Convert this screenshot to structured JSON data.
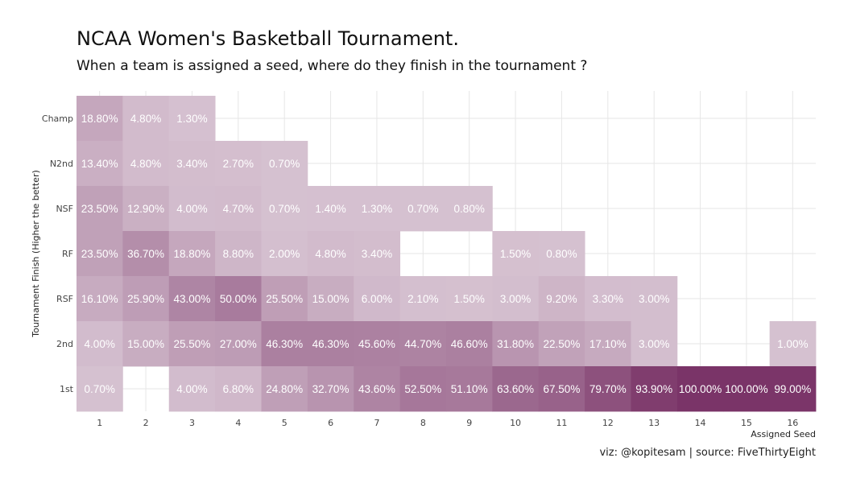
{
  "chart_data": {
    "type": "heatmap",
    "title": "NCAA Women's Basketball Tournament.",
    "subtitle": "When a team is assigned a seed, where do they finish in the tournament ?",
    "xlabel": "Assigned Seed",
    "ylabel": "Tournament Finish (Higher the better)",
    "x_categories": [
      "1",
      "2",
      "3",
      "4",
      "5",
      "6",
      "7",
      "8",
      "9",
      "10",
      "11",
      "12",
      "13",
      "14",
      "15",
      "16"
    ],
    "y_categories": [
      "Champ",
      "N2nd",
      "NSF",
      "RF",
      "RSF",
      "2nd",
      "1st"
    ],
    "cells": [
      {
        "seed": "1",
        "finish": "Champ",
        "value": 18.8,
        "label": "18.80%"
      },
      {
        "seed": "2",
        "finish": "Champ",
        "value": 4.8,
        "label": "4.80%"
      },
      {
        "seed": "3",
        "finish": "Champ",
        "value": 1.3,
        "label": "1.30%"
      },
      {
        "seed": "1",
        "finish": "N2nd",
        "value": 13.4,
        "label": "13.40%"
      },
      {
        "seed": "2",
        "finish": "N2nd",
        "value": 4.8,
        "label": "4.80%"
      },
      {
        "seed": "3",
        "finish": "N2nd",
        "value": 3.4,
        "label": "3.40%"
      },
      {
        "seed": "4",
        "finish": "N2nd",
        "value": 2.7,
        "label": "2.70%"
      },
      {
        "seed": "5",
        "finish": "N2nd",
        "value": 0.7,
        "label": "0.70%"
      },
      {
        "seed": "1",
        "finish": "NSF",
        "value": 23.5,
        "label": "23.50%"
      },
      {
        "seed": "2",
        "finish": "NSF",
        "value": 12.9,
        "label": "12.90%"
      },
      {
        "seed": "3",
        "finish": "NSF",
        "value": 4.0,
        "label": "4.00%"
      },
      {
        "seed": "4",
        "finish": "NSF",
        "value": 4.7,
        "label": "4.70%"
      },
      {
        "seed": "5",
        "finish": "NSF",
        "value": 0.7,
        "label": "0.70%"
      },
      {
        "seed": "6",
        "finish": "NSF",
        "value": 1.4,
        "label": "1.40%"
      },
      {
        "seed": "7",
        "finish": "NSF",
        "value": 1.3,
        "label": "1.30%"
      },
      {
        "seed": "8",
        "finish": "NSF",
        "value": 0.7,
        "label": "0.70%"
      },
      {
        "seed": "9",
        "finish": "NSF",
        "value": 0.8,
        "label": "0.80%"
      },
      {
        "seed": "1",
        "finish": "RF",
        "value": 23.5,
        "label": "23.50%"
      },
      {
        "seed": "2",
        "finish": "RF",
        "value": 36.7,
        "label": "36.70%"
      },
      {
        "seed": "3",
        "finish": "RF",
        "value": 18.8,
        "label": "18.80%"
      },
      {
        "seed": "4",
        "finish": "RF",
        "value": 8.8,
        "label": "8.80%"
      },
      {
        "seed": "5",
        "finish": "RF",
        "value": 2.0,
        "label": "2.00%"
      },
      {
        "seed": "6",
        "finish": "RF",
        "value": 4.8,
        "label": "4.80%"
      },
      {
        "seed": "7",
        "finish": "RF",
        "value": 3.4,
        "label": "3.40%"
      },
      {
        "seed": "10",
        "finish": "RF",
        "value": 1.5,
        "label": "1.50%"
      },
      {
        "seed": "11",
        "finish": "RF",
        "value": 0.8,
        "label": "0.80%"
      },
      {
        "seed": "1",
        "finish": "RSF",
        "value": 16.1,
        "label": "16.10%"
      },
      {
        "seed": "2",
        "finish": "RSF",
        "value": 25.9,
        "label": "25.90%"
      },
      {
        "seed": "3",
        "finish": "RSF",
        "value": 43.0,
        "label": "43.00%"
      },
      {
        "seed": "4",
        "finish": "RSF",
        "value": 50.0,
        "label": "50.00%"
      },
      {
        "seed": "5",
        "finish": "RSF",
        "value": 25.5,
        "label": "25.50%"
      },
      {
        "seed": "6",
        "finish": "RSF",
        "value": 15.0,
        "label": "15.00%"
      },
      {
        "seed": "7",
        "finish": "RSF",
        "value": 6.0,
        "label": "6.00%"
      },
      {
        "seed": "8",
        "finish": "RSF",
        "value": 2.1,
        "label": "2.10%"
      },
      {
        "seed": "9",
        "finish": "RSF",
        "value": 1.5,
        "label": "1.50%"
      },
      {
        "seed": "10",
        "finish": "RSF",
        "value": 3.0,
        "label": "3.00%"
      },
      {
        "seed": "11",
        "finish": "RSF",
        "value": 9.2,
        "label": "9.20%"
      },
      {
        "seed": "12",
        "finish": "RSF",
        "value": 3.3,
        "label": "3.30%"
      },
      {
        "seed": "13",
        "finish": "RSF",
        "value": 3.0,
        "label": "3.00%"
      },
      {
        "seed": "1",
        "finish": "2nd",
        "value": 4.0,
        "label": "4.00%"
      },
      {
        "seed": "2",
        "finish": "2nd",
        "value": 15.0,
        "label": "15.00%"
      },
      {
        "seed": "3",
        "finish": "2nd",
        "value": 25.5,
        "label": "25.50%"
      },
      {
        "seed": "4",
        "finish": "2nd",
        "value": 27.0,
        "label": "27.00%"
      },
      {
        "seed": "5",
        "finish": "2nd",
        "value": 46.3,
        "label": "46.30%"
      },
      {
        "seed": "6",
        "finish": "2nd",
        "value": 46.3,
        "label": "46.30%"
      },
      {
        "seed": "7",
        "finish": "2nd",
        "value": 45.6,
        "label": "45.60%"
      },
      {
        "seed": "8",
        "finish": "2nd",
        "value": 44.7,
        "label": "44.70%"
      },
      {
        "seed": "9",
        "finish": "2nd",
        "value": 46.6,
        "label": "46.60%"
      },
      {
        "seed": "10",
        "finish": "2nd",
        "value": 31.8,
        "label": "31.80%"
      },
      {
        "seed": "11",
        "finish": "2nd",
        "value": 22.5,
        "label": "22.50%"
      },
      {
        "seed": "12",
        "finish": "2nd",
        "value": 17.1,
        "label": "17.10%"
      },
      {
        "seed": "13",
        "finish": "2nd",
        "value": 3.0,
        "label": "3.00%"
      },
      {
        "seed": "16",
        "finish": "2nd",
        "value": 1.0,
        "label": "1.00%"
      },
      {
        "seed": "1",
        "finish": "1st",
        "value": 0.7,
        "label": "0.70%"
      },
      {
        "seed": "3",
        "finish": "1st",
        "value": 4.0,
        "label": "4.00%"
      },
      {
        "seed": "4",
        "finish": "1st",
        "value": 6.8,
        "label": "6.80%"
      },
      {
        "seed": "5",
        "finish": "1st",
        "value": 24.8,
        "label": "24.80%"
      },
      {
        "seed": "6",
        "finish": "1st",
        "value": 32.7,
        "label": "32.70%"
      },
      {
        "seed": "7",
        "finish": "1st",
        "value": 43.6,
        "label": "43.60%"
      },
      {
        "seed": "8",
        "finish": "1st",
        "value": 52.5,
        "label": "52.50%"
      },
      {
        "seed": "9",
        "finish": "1st",
        "value": 51.1,
        "label": "51.10%"
      },
      {
        "seed": "10",
        "finish": "1st",
        "value": 63.6,
        "label": "63.60%"
      },
      {
        "seed": "11",
        "finish": "1st",
        "value": 67.5,
        "label": "67.50%"
      },
      {
        "seed": "12",
        "finish": "1st",
        "value": 79.7,
        "label": "79.70%"
      },
      {
        "seed": "13",
        "finish": "1st",
        "value": 93.9,
        "label": "93.90%"
      },
      {
        "seed": "14",
        "finish": "1st",
        "value": 100.0,
        "label": "100.00%"
      },
      {
        "seed": "15",
        "finish": "1st",
        "value": 100.0,
        "label": "100.00%"
      },
      {
        "seed": "16",
        "finish": "1st",
        "value": 99.0,
        "label": "99.00%"
      }
    ],
    "color_low": "#d6c2d1",
    "color_high": "#7a3468",
    "value_range": [
      0,
      100
    ],
    "grid": true,
    "legend": "none",
    "caption": "viz: @kopitesam | source: FiveThirtyEight"
  }
}
